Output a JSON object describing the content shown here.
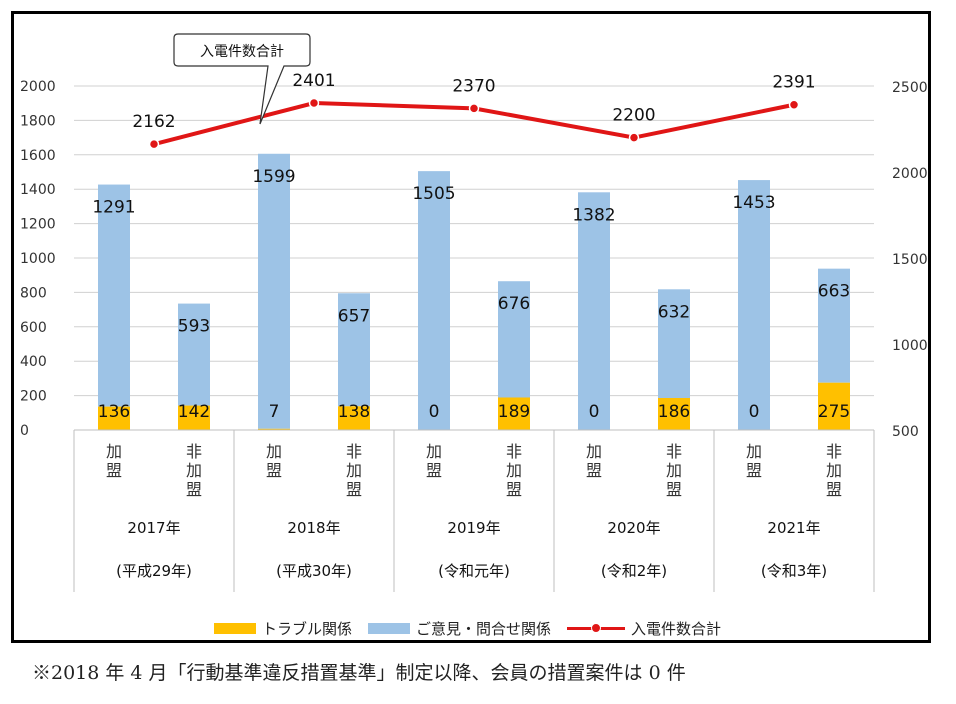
{
  "footnote": "※2018 年 4 月「行動基準違反措置基準」制定以降、会員の措置案件は 0 件",
  "legend": {
    "trouble": "トラブル関係",
    "opinion": "ご意見・問合せ関係",
    "total": "入電件数合計"
  },
  "callout": "入電件数合計",
  "colors": {
    "trouble": "#ffc000",
    "opinion": "#9dc3e6",
    "total": "#e01616"
  },
  "chart_data": {
    "type": "bar",
    "years": [
      "2017年",
      "2018年",
      "2019年",
      "2020年",
      "2021年"
    ],
    "eras": [
      "(平成29年)",
      "(平成30年)",
      "(令和元年)",
      "(令和2年)",
      "(令和3年)"
    ],
    "member_labels": [
      "加盟",
      "非加盟"
    ],
    "categories": [
      "2017年 加盟",
      "2017年 非加盟",
      "2018年 加盟",
      "2018年 非加盟",
      "2019年 加盟",
      "2019年 非加盟",
      "2020年 加盟",
      "2020年 非加盟",
      "2021年 加盟",
      "2021年 非加盟"
    ],
    "series": [
      {
        "name": "トラブル関係",
        "values": [
          136,
          142,
          7,
          138,
          0,
          189,
          0,
          186,
          0,
          275
        ]
      },
      {
        "name": "ご意見・問合せ関係",
        "values": [
          1291,
          593,
          1599,
          657,
          1505,
          676,
          1382,
          632,
          1453,
          663
        ]
      }
    ],
    "line": {
      "name": "入電件数合計",
      "axis": "right",
      "values": [
        2162,
        2401,
        2370,
        2200,
        2391
      ]
    },
    "left_axis": {
      "ylim": [
        0,
        2000
      ],
      "ticks": [
        0,
        200,
        400,
        600,
        800,
        1000,
        1200,
        1400,
        1600,
        1800,
        2000
      ]
    },
    "right_axis": {
      "ylim": [
        500,
        2500
      ],
      "ticks": [
        500,
        1000,
        1500,
        2000,
        2500
      ]
    },
    "grid": true,
    "legend_position": "bottom"
  }
}
